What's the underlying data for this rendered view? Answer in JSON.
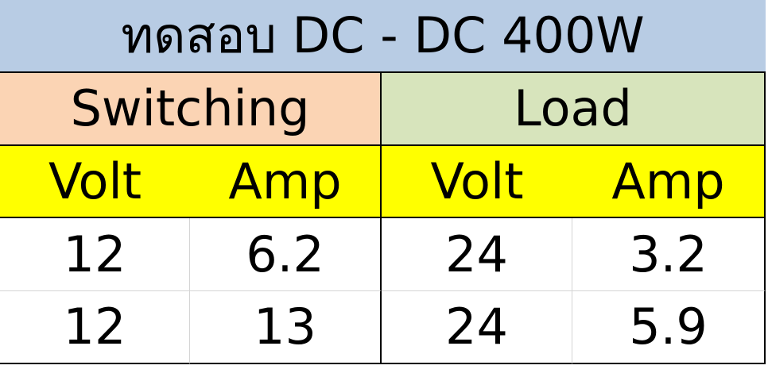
{
  "title": "ทดสอบ DC - DC 400W",
  "groups": {
    "switching": "Switching",
    "load": "Load"
  },
  "subheaders": [
    "Volt",
    "Amp",
    "Volt",
    "Amp"
  ],
  "rows": [
    [
      "12",
      "6.2",
      "24",
      "3.2"
    ],
    [
      "12",
      "13",
      "24",
      "5.9"
    ]
  ],
  "colors": {
    "title_bg": "#b8cce4",
    "switching_bg": "#fbd4b4",
    "load_bg": "#d7e4bc",
    "subheader_bg": "#ffff00"
  }
}
